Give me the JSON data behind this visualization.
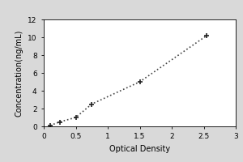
{
  "x_data": [
    0.1,
    0.25,
    0.5,
    0.75,
    1.5,
    2.55
  ],
  "y_data": [
    0.1,
    0.5,
    1.0,
    2.5,
    5.0,
    10.2
  ],
  "xlabel": "Optical Density",
  "ylabel": "Concentration(ng/mL)",
  "xlim": [
    0,
    3
  ],
  "ylim": [
    0,
    12
  ],
  "xticks": [
    0,
    0.5,
    1,
    1.5,
    2,
    2.5,
    3
  ],
  "yticks": [
    0,
    2,
    4,
    6,
    8,
    10,
    12
  ],
  "xtick_labels": [
    "0",
    "0.5",
    "1",
    "1.5",
    "2",
    "2.5",
    "3"
  ],
  "ytick_labels": [
    "0",
    "2",
    "4",
    "6",
    "8",
    "10",
    "12"
  ],
  "line_color": "#444444",
  "marker": "+",
  "marker_color": "#222222",
  "marker_size": 5,
  "marker_edge_width": 1.2,
  "line_style": "dotted",
  "line_width": 1.2,
  "plot_bg_color": "#ffffff",
  "fig_bg_color": "#d9d9d9",
  "xlabel_fontsize": 7,
  "ylabel_fontsize": 7,
  "tick_fontsize": 6.5,
  "box_visible": true
}
